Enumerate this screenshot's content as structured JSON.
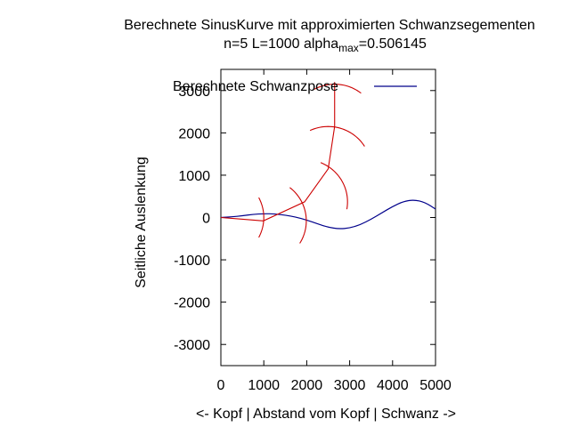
{
  "chart_data": {
    "type": "line",
    "title": "Berechnete SinusKurve mit approximierten Schwanzsegementen",
    "subtitle_prefix": "n=5 L=1000 alpha",
    "subtitle_sub": "max",
    "subtitle_suffix": "=0.506145",
    "xlabel": "<- Kopf | Abstand vom Kopf | Schwanz ->",
    "ylabel": "Seitliche Auslenkung",
    "xlim": [
      0,
      5000
    ],
    "ylim": [
      -3500,
      3500
    ],
    "x_ticks": [
      "0",
      "1000",
      "2000",
      "3000",
      "4000",
      "5000"
    ],
    "y_ticks": [
      "-3000",
      "-2000",
      "-1000",
      "0",
      "1000",
      "2000",
      "3000"
    ],
    "legend": {
      "position": "top-right",
      "entry": "Berechnete Schwanzpose",
      "color": "#00008b"
    },
    "sine_series": {
      "color": "#00008b",
      "x": [
        0,
        250,
        500,
        750,
        1000,
        1250,
        1500,
        1750,
        2000,
        2250,
        2500,
        2750,
        3000,
        3250,
        3500,
        3750,
        4000,
        4250,
        4500,
        4750,
        5000
      ],
      "y": [
        0,
        15,
        40,
        75,
        90,
        85,
        55,
        10,
        -60,
        -150,
        -230,
        -270,
        -250,
        -170,
        -40,
        110,
        260,
        380,
        420,
        360,
        200
      ]
    },
    "segments_series": {
      "color": "#cc0000",
      "x": [
        0,
        990,
        1950,
        2500,
        2650,
        2650
      ],
      "y": [
        0,
        -80,
        370,
        1150,
        2150,
        3200
      ]
    },
    "arcs": [
      {
        "cx": 0,
        "cy": 0,
        "r": 1000,
        "from_deg": -28,
        "to_deg": 28
      },
      {
        "cx": 990,
        "cy": -80,
        "r": 1000,
        "from_deg": -32,
        "to_deg": 52
      },
      {
        "cx": 1950,
        "cy": 370,
        "r": 1000,
        "from_deg": -10,
        "to_deg": 68
      },
      {
        "cx": 2500,
        "cy": 1150,
        "r": 1000,
        "from_deg": 32,
        "to_deg": 115
      },
      {
        "cx": 2650,
        "cy": 2150,
        "r": 1000,
        "from_deg": 52,
        "to_deg": 118
      }
    ]
  }
}
